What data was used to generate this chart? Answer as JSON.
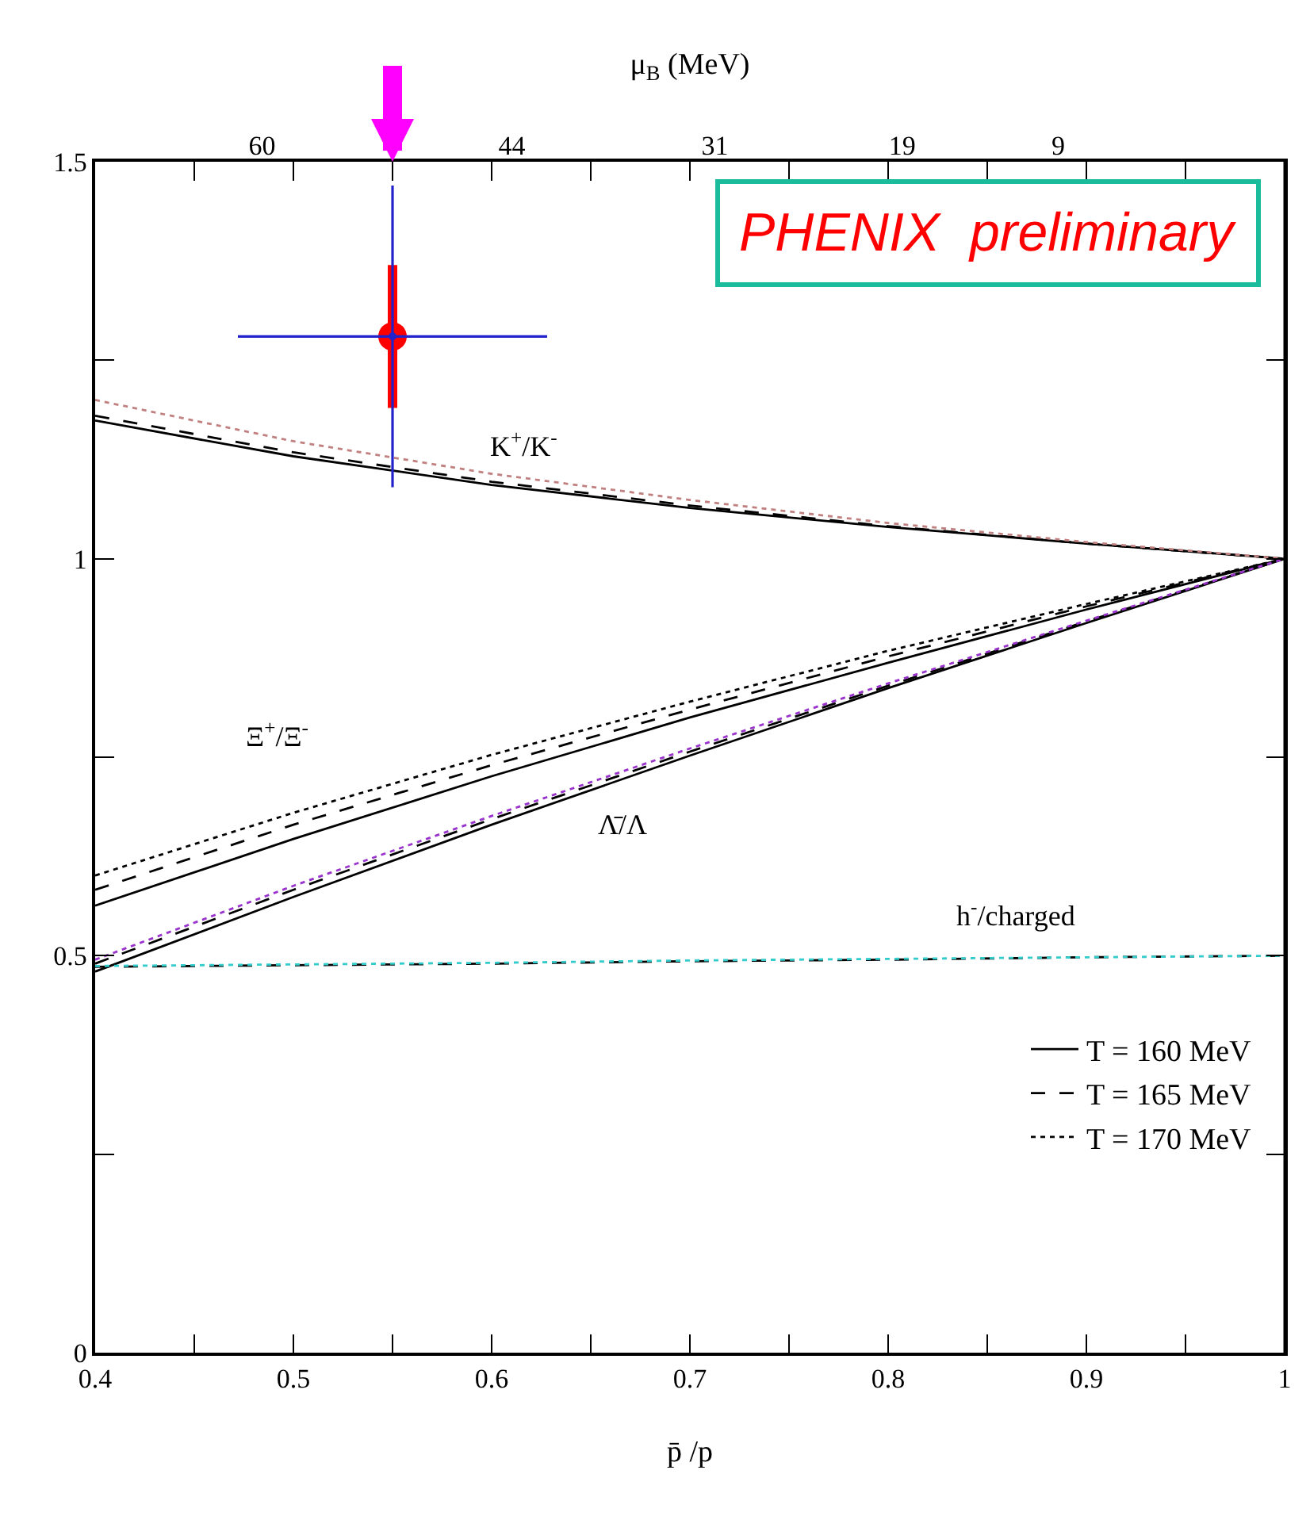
{
  "chart_data": {
    "type": "line",
    "x": [
      0.4,
      0.5,
      0.6,
      0.7,
      0.8,
      0.9,
      1.0
    ],
    "xlabel": "p̄ /p",
    "x2label": "μ$_{B}$ (MeV)",
    "xlim": [
      0.4,
      1.0
    ],
    "xticks": [
      0.4,
      {
        "value": 0.45,
        "label": null
      },
      0.5,
      {
        "value": 0.55,
        "label": null
      },
      0.6,
      {
        "value": 0.65,
        "label": null
      },
      0.7,
      {
        "value": 0.75,
        "label": null
      },
      0.8,
      {
        "value": 0.85,
        "label": null
      },
      0.9,
      {
        "value": 0.95,
        "label": null
      },
      1
    ],
    "x2lim": [
      70.7,
      -5.5
    ],
    "x2ticks": [
      60,
      44,
      31,
      19,
      9
    ],
    "ylim": [
      0,
      1.5
    ],
    "yticks": [
      0,
      {
        "value": 0.25,
        "label": null
      },
      0.5,
      {
        "value": 0.75,
        "label": null
      },
      1,
      {
        "value": 1.25,
        "label": null
      },
      1.5
    ],
    "grid": false,
    "legend": "bottom right",
    "series": [
      {
        "name": "T = 160 MeV",
        "color": "#000000",
        "line_style": "solid",
        "marker": "none",
        "values": [
          0.563,
          0.647,
          0.726,
          0.8,
          0.869,
          0.936,
          1.0
        ]
      },
      {
        "name": "T = 165 MeV",
        "color": "#000000",
        "line_style": "dashed",
        "marker": "none",
        "values": [
          0.583,
          0.665,
          0.74,
          0.81,
          0.877,
          0.94,
          1.0
        ]
      },
      {
        "name": "T = 170 MeV",
        "color": "#000000",
        "line_style": "dotted",
        "marker": "none",
        "values": [
          0.601,
          0.68,
          0.753,
          0.82,
          0.884,
          0.943,
          1.0
        ]
      },
      {
        "color": "#000000",
        "line_style": "solid",
        "marker": "none",
        "values": [
          1.174,
          1.129,
          1.093,
          1.064,
          1.04,
          1.019,
          1.0
        ]
      },
      {
        "color": "#000000",
        "line_style": "dashed",
        "marker": "none",
        "values": [
          1.18,
          1.134,
          1.097,
          1.067,
          1.041,
          1.019,
          1.0
        ]
      },
      {
        "color": "#c08080",
        "line_style": "dotted",
        "marker": "none",
        "values": [
          1.2,
          1.148,
          1.107,
          1.074,
          1.045,
          1.021,
          1.0
        ]
      },
      {
        "color": "#000000",
        "line_style": "solid",
        "marker": "none",
        "values": [
          0.48,
          0.574,
          0.665,
          0.752,
          0.837,
          0.919,
          1.0
        ]
      },
      {
        "color": "#000000",
        "line_style": "dashed",
        "marker": "none",
        "values": [
          0.49,
          0.583,
          0.672,
          0.757,
          0.84,
          0.921,
          1.0
        ]
      },
      {
        "color": "#9933cc",
        "line_style": "dotted",
        "marker": "none",
        "values": [
          0.495,
          0.588,
          0.676,
          0.761,
          0.843,
          0.922,
          1.0
        ]
      },
      {
        "color": "#000000",
        "line_style": "dashed",
        "marker": "none",
        "values": [
          0.486,
          0.488,
          0.49,
          0.493,
          0.495,
          0.498,
          0.5
        ]
      },
      {
        "color": "#33cccc",
        "line_style": "dotted",
        "marker": "none",
        "values": [
          0.487,
          0.489,
          0.491,
          0.494,
          0.496,
          0.498,
          0.5
        ]
      },
      {
        "type": "scatter",
        "color": "#ff0000",
        "marker": "circle",
        "x": [
          0.55
        ],
        "values": [
          1.28
        ],
        "errors": [
          0.09
        ]
      },
      {
        "type": "scatter",
        "color": "#2222cc",
        "marker": "circle",
        "x": [
          0.55
        ],
        "values": [
          1.28
        ],
        "errors": [
          0.19
        ],
        "xerrors": [
          0.078
        ]
      }
    ],
    "annotations": [
      "K$^{+}$/K$^{-}$",
      "Ξ$^{+}$/Ξ$^{-}$",
      "Λ̄/Λ",
      "h$^{-}$/charged",
      "PHENIX  preliminary"
    ]
  }
}
